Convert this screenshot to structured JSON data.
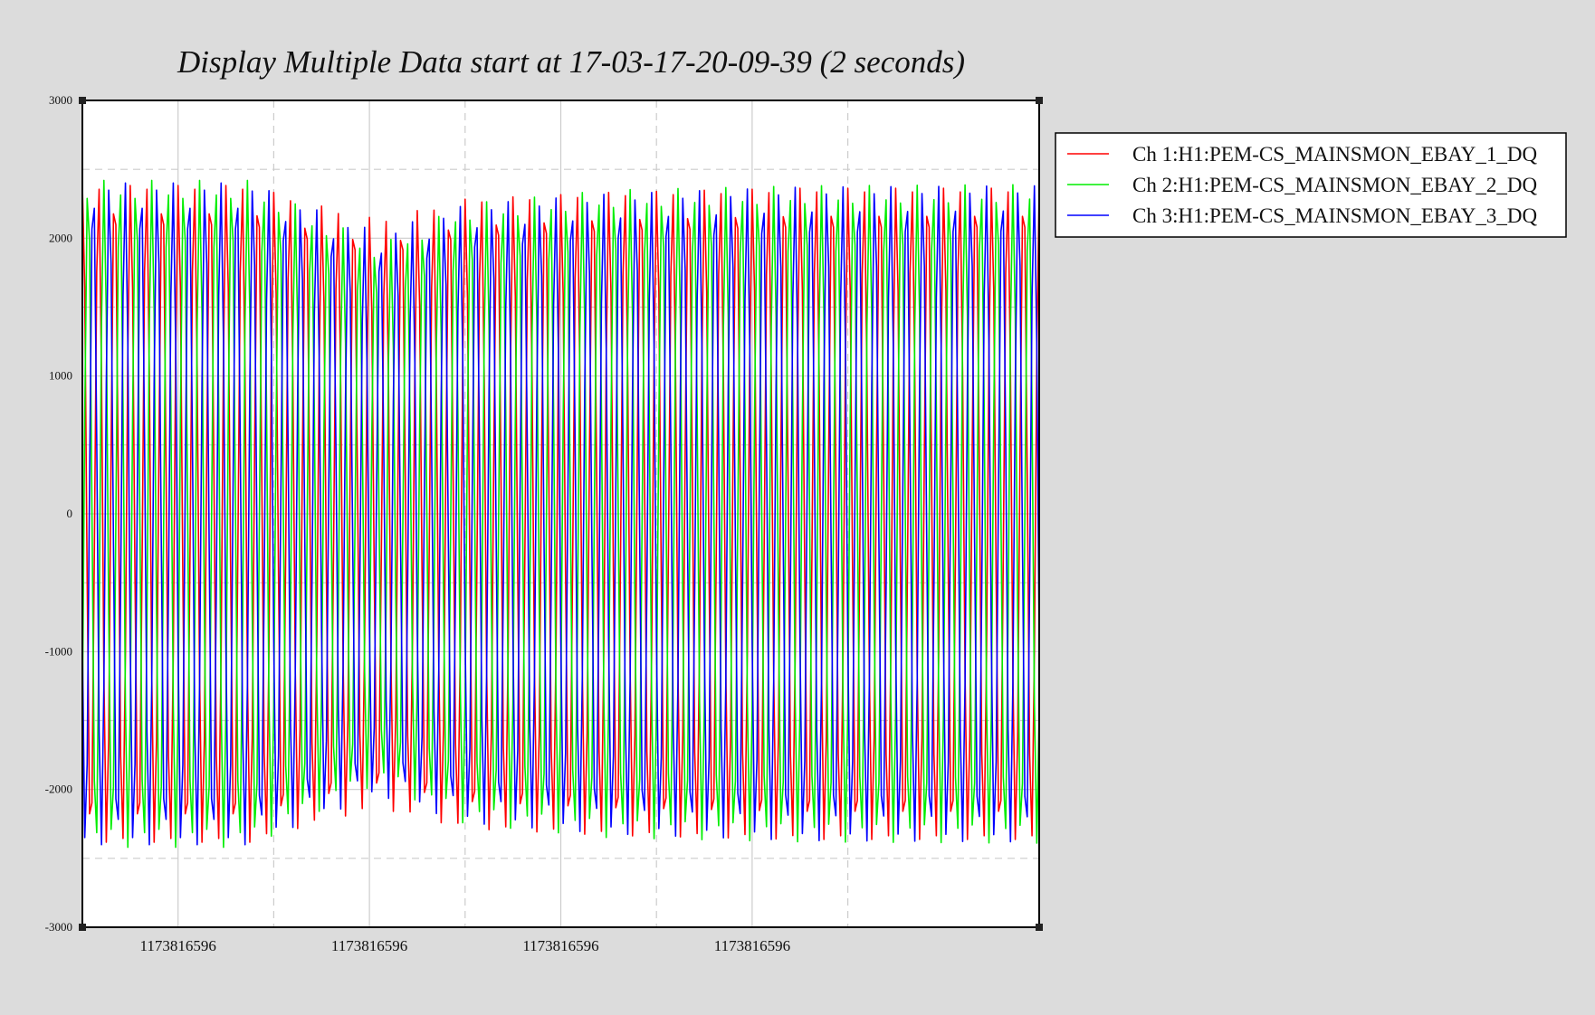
{
  "chart_data": {
    "type": "line",
    "title": "Display Multiple Data start at 17-03-17-20-09-39 (2 seconds)",
    "xlabel": "",
    "ylabel": "",
    "ylim": [
      -3000,
      3000
    ],
    "yticks": [
      3000,
      2000,
      1000,
      0,
      -1000,
      -2000,
      -3000
    ],
    "ytick_labels": [
      "3000",
      "2000",
      "1000",
      "0",
      "-1000",
      "-2000",
      "-3000"
    ],
    "xlim": [
      0,
      2
    ],
    "xticks": [
      0.2,
      0.6,
      1.0,
      1.4
    ],
    "xtick_labels": [
      "1173816596",
      "1173816596",
      "1173816596",
      "1173816596"
    ],
    "grid": true,
    "legend_position": "right",
    "series": [
      {
        "name": "Ch 1:H1:PEM-CS_MAINSMON_EBAY_1_DQ",
        "color": "#ff0000",
        "phase_deg": 0,
        "frequency_hz": 30,
        "amplitude_profile": [
          [
            0,
            2400
          ],
          [
            0.35,
            2400
          ],
          [
            0.5,
            2250
          ],
          [
            0.62,
            2150
          ],
          [
            0.8,
            2300
          ],
          [
            1.1,
            2350
          ],
          [
            1.5,
            2380
          ],
          [
            2.0,
            2380
          ]
        ]
      },
      {
        "name": "Ch 2:H1:PEM-CS_MAINSMON_EBAY_2_DQ",
        "color": "#00ee00",
        "phase_deg": -120,
        "frequency_hz": 30,
        "amplitude_profile": [
          [
            0,
            2420
          ],
          [
            0.35,
            2420
          ],
          [
            0.5,
            2150
          ],
          [
            0.62,
            1950
          ],
          [
            0.8,
            2250
          ],
          [
            1.1,
            2350
          ],
          [
            1.5,
            2380
          ],
          [
            2.0,
            2390
          ]
        ]
      },
      {
        "name": "Ch 3:H1:PEM-CS_MAINSMON_EBAY_3_DQ",
        "color": "#0000ff",
        "phase_deg": 120,
        "frequency_hz": 30,
        "amplitude_profile": [
          [
            0,
            2410
          ],
          [
            0.35,
            2410
          ],
          [
            0.5,
            2200
          ],
          [
            0.62,
            2050
          ],
          [
            0.8,
            2250
          ],
          [
            1.1,
            2330
          ],
          [
            1.5,
            2380
          ],
          [
            2.0,
            2390
          ]
        ]
      }
    ]
  }
}
